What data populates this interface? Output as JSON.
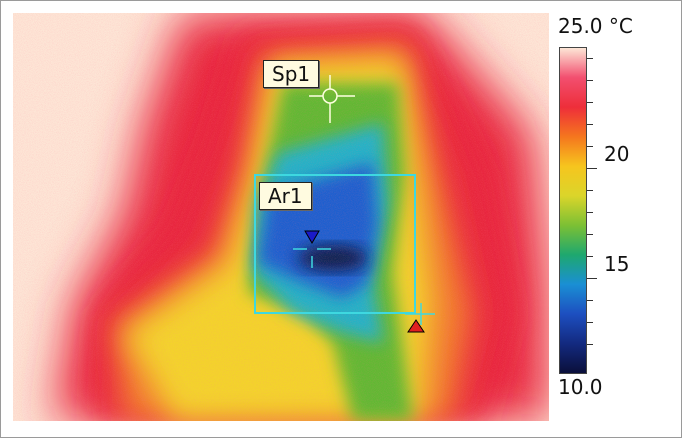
{
  "thermal_image": {
    "colors": {
      "background": "#fde6d6",
      "hot": "#e8283c",
      "warm_orange": "#f27a2d",
      "yellow": "#f3d42a",
      "green": "#61b933",
      "cyan": "#22b3c8",
      "blue": "#1b5fcf",
      "cold_core": "#101e4a"
    },
    "spot": {
      "label": "Sp1",
      "marker_color": "#ffffe0"
    },
    "area": {
      "label": "Ar1",
      "box_color": "#3ed8e0"
    },
    "min_marker": {
      "icon": "triangle-down-icon",
      "color": "#1a1ac8"
    },
    "max_marker": {
      "icon": "triangle-up-icon",
      "color": "#e02020"
    }
  },
  "color_scale": {
    "max_label": "25.0 °C",
    "min_label": "10.0",
    "tick_labels": [
      "20",
      "15"
    ],
    "gradient_stops": [
      "#fde6d6",
      "#f24f6f",
      "#ee2e3a",
      "#f5761e",
      "#f6c51e",
      "#dbd52a",
      "#7cc034",
      "#1ea86f",
      "#1a8fd4",
      "#1d4fc0",
      "#132a80",
      "#0a0f3a"
    ]
  }
}
